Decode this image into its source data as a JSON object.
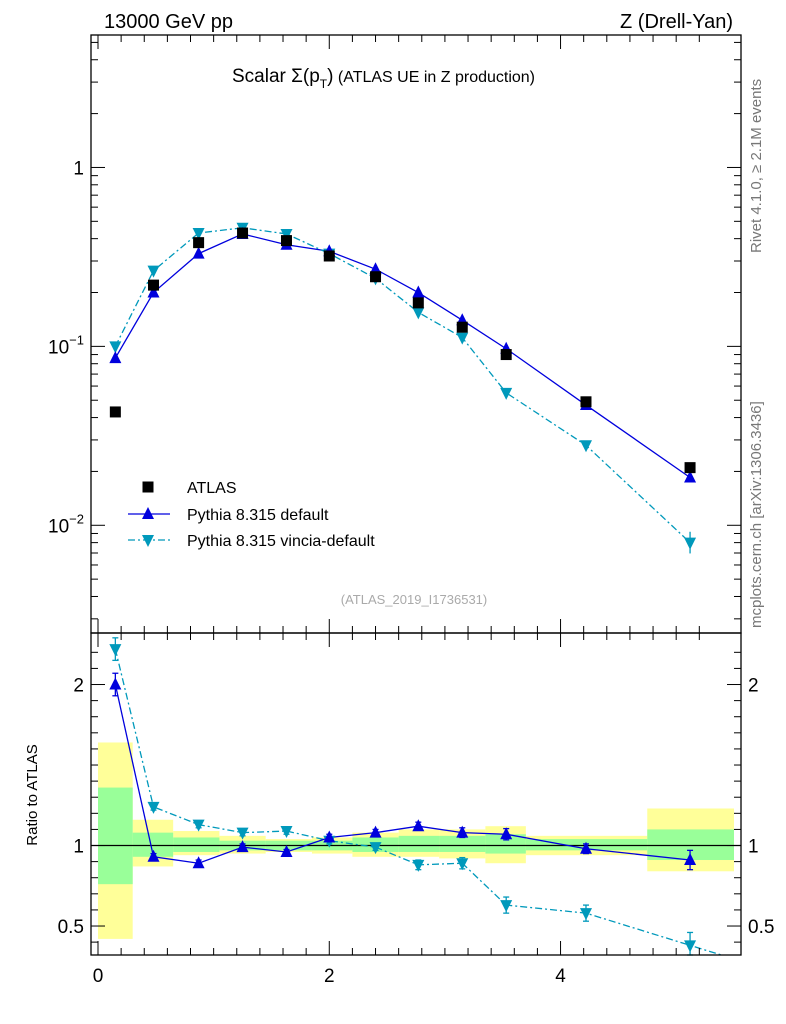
{
  "header": {
    "energy_label": "13000 GeV pp",
    "process_label": "Z (Drell-Yan)"
  },
  "side_labels": {
    "rivet": "Rivet 4.1.0, ≥ 2.1M events",
    "mcplots": "mcplots.cern.ch [arXiv:1306.3436]"
  },
  "title": {
    "prefix": "Scalar ",
    "sigma": "Σ(p",
    "sub": "T",
    "close": ")",
    "suffix": " (ATLAS UE in Z production)"
  },
  "analysis_id": "(ATLAS_2019_I1736531)",
  "colors": {
    "data": "#000000",
    "default": "#0000dd",
    "vincia": "#0099bb",
    "band_yellow": "#ffff99",
    "band_green": "#99ff99"
  },
  "chart_data": {
    "type": "scatter",
    "x_bin_edges": [
      0.0,
      0.3,
      0.65,
      1.05,
      1.45,
      1.85,
      2.2,
      2.6,
      2.95,
      3.35,
      3.7,
      4.75,
      5.5
    ],
    "x": [
      0.15,
      0.48,
      0.87,
      1.25,
      1.63,
      2.0,
      2.4,
      2.77,
      3.15,
      3.53,
      4.22,
      5.12
    ],
    "main": {
      "yscale": "log",
      "ylim": [
        0.0025,
        5.5
      ],
      "yticks": [
        {
          "value": 0.01,
          "base": "10",
          "exp": "−2"
        },
        {
          "value": 0.1,
          "base": "10",
          "exp": "−1"
        },
        {
          "value": 1,
          "base": "1",
          "exp": ""
        }
      ],
      "series": [
        {
          "name": "ATLAS",
          "marker": "square",
          "values": [
            0.043,
            0.22,
            0.38,
            0.43,
            0.39,
            0.32,
            0.245,
            0.175,
            0.128,
            0.09,
            0.049,
            0.021
          ]
        },
        {
          "name": "Pythia 8.315 default",
          "marker": "triangle-up",
          "line": "solid",
          "values": [
            0.086,
            0.2,
            0.33,
            0.425,
            0.37,
            0.34,
            0.27,
            0.2,
            0.14,
            0.097,
            0.047,
            0.0185
          ]
        },
        {
          "name": "Pythia 8.315 vincia-default",
          "marker": "triangle-down",
          "line": "dashdot",
          "values": [
            0.1,
            0.265,
            0.43,
            0.46,
            0.425,
            0.33,
            0.24,
            0.155,
            0.112,
            0.055,
            0.028,
            0.008
          ]
        }
      ]
    },
    "ratio": {
      "ylabel": "Ratio to ATLAS",
      "ylim": [
        0.32,
        2.32
      ],
      "yticks": [
        0.5,
        1,
        2
      ],
      "xticks": [
        0,
        2,
        4
      ],
      "band_yellow": [
        [
          0.42,
          1.64
        ],
        [
          0.87,
          1.16
        ],
        [
          0.94,
          1.09
        ],
        [
          0.95,
          1.06
        ],
        [
          0.96,
          1.04
        ],
        [
          0.95,
          1.05
        ],
        [
          0.93,
          1.08
        ],
        [
          0.93,
          1.1
        ],
        [
          0.92,
          1.1
        ],
        [
          0.89,
          1.12
        ],
        [
          0.94,
          1.06
        ],
        [
          0.84,
          1.23
        ]
      ],
      "band_green": [
        [
          0.76,
          1.36
        ],
        [
          0.93,
          1.08
        ],
        [
          0.96,
          1.05
        ],
        [
          0.97,
          1.03
        ],
        [
          0.97,
          1.03
        ],
        [
          0.97,
          1.03
        ],
        [
          0.96,
          1.05
        ],
        [
          0.96,
          1.06
        ],
        [
          0.96,
          1.06
        ],
        [
          0.95,
          1.07
        ],
        [
          0.97,
          1.04
        ],
        [
          0.91,
          1.1
        ]
      ],
      "series": [
        {
          "name": "Pythia 8.315 default",
          "values": [
            2.0,
            0.93,
            0.89,
            0.99,
            0.96,
            1.05,
            1.08,
            1.12,
            1.08,
            1.07,
            0.98,
            0.91
          ],
          "errors": [
            0.07,
            0.02,
            0.02,
            0.02,
            0.015,
            0.02,
            0.02,
            0.025,
            0.03,
            0.035,
            0.03,
            0.06
          ]
        },
        {
          "name": "Pythia 8.315 vincia-default",
          "values": [
            2.22,
            1.24,
            1.13,
            1.08,
            1.09,
            1.03,
            0.99,
            0.88,
            0.89,
            0.63,
            0.58,
            0.38
          ],
          "errors": [
            0.07,
            0.02,
            0.02,
            0.02,
            0.02,
            0.02,
            0.02,
            0.03,
            0.035,
            0.05,
            0.05,
            0.08
          ]
        }
      ]
    }
  }
}
